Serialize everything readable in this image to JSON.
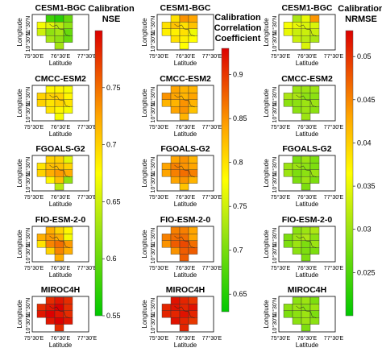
{
  "chart_data": {
    "type": "heatmap",
    "grid_columns": [
      "NSE",
      "Correlation",
      "NRMSE"
    ],
    "rows": [
      "CESM1-BGC",
      "CMCC-ESM2",
      "FGOALS-G2",
      "FIO-ESM-2-0",
      "MIROC4H"
    ],
    "xlabel": "Latitude",
    "ylabel": "Longitude",
    "xticks": [
      "75°30'E",
      "76°30'E",
      "77°30'E"
    ],
    "yticks": [
      "11°30'N",
      "10°30'N"
    ],
    "colorbars": [
      {
        "id": "NSE",
        "title_lines": [
          "Calibration",
          "NSE"
        ],
        "range": [
          0.55,
          0.8
        ],
        "ticks": [
          "0.75",
          "0.7",
          "0.65",
          "0.6",
          "0.55"
        ],
        "tick_values": [
          0.75,
          0.7,
          0.65,
          0.6,
          0.55
        ]
      },
      {
        "id": "Correlation",
        "title_lines": [
          "Calibration",
          "Correlation",
          "Coefficient"
        ],
        "range": [
          0.63,
          0.93
        ],
        "ticks": [
          "0.9",
          "0.85",
          "0.8",
          "0.75",
          "0.7",
          "0.65"
        ],
        "tick_values": [
          0.9,
          0.85,
          0.8,
          0.75,
          0.7,
          0.65
        ]
      },
      {
        "id": "NRMSE",
        "title_lines": [
          "Calibration",
          "NRMSE"
        ],
        "range": [
          0.02,
          0.053
        ],
        "ticks": [
          "0.05",
          "0.045",
          "0.04",
          "0.035",
          "0.03",
          "0.025"
        ],
        "tick_values": [
          0.05,
          0.045,
          0.04,
          0.035,
          0.03,
          0.025
        ]
      }
    ],
    "cells_note": "Grid cells in each map row-major: row0 [c1,c2,c3], row1 [c0,c1,c2,c3], row2 [c0,c1,c2,c3], row3 [c1,c2,c3], row4 [c2]",
    "panels": [
      {
        "row": "CESM1-BGC",
        "col": "NSE",
        "values": [
          0.58,
          0.57,
          0.6,
          0.67,
          0.66,
          0.64,
          0.62,
          0.65,
          0.62,
          0.63,
          0.6,
          0.63,
          0.62,
          0.6,
          0.63
        ]
      },
      {
        "row": "CESM1-BGC",
        "col": "Correlation",
        "values": [
          0.8,
          0.85,
          0.84,
          0.8,
          0.82,
          0.8,
          0.82,
          0.79,
          0.79,
          0.8,
          0.77,
          0.8,
          0.79,
          0.78,
          0.78
        ]
      },
      {
        "row": "CESM1-BGC",
        "col": "NRMSE",
        "values": [
          0.031,
          0.035,
          0.044,
          0.036,
          0.035,
          0.034,
          0.034,
          0.035,
          0.033,
          0.033,
          0.033,
          0.033,
          0.032,
          0.031,
          0.034
        ]
      },
      {
        "row": "CMCC-ESM2",
        "col": "NSE",
        "values": [
          0.68,
          0.68,
          0.67,
          0.7,
          0.7,
          0.7,
          0.68,
          0.7,
          0.69,
          0.7,
          0.69,
          0.69,
          0.68,
          0.67,
          0.67
        ]
      },
      {
        "row": "CMCC-ESM2",
        "col": "Correlation",
        "values": [
          0.84,
          0.83,
          0.83,
          0.85,
          0.84,
          0.83,
          0.84,
          0.83,
          0.83,
          0.85,
          0.83,
          0.84,
          0.85,
          0.82,
          0.83
        ]
      },
      {
        "row": "CMCC-ESM2",
        "col": "NRMSE",
        "values": [
          0.03,
          0.03,
          0.03,
          0.031,
          0.031,
          0.029,
          0.029,
          0.029,
          0.029,
          0.03,
          0.03,
          0.029,
          0.03,
          0.029,
          0.03
        ]
      },
      {
        "row": "FGOALS-G2",
        "col": "NSE",
        "values": [
          0.7,
          0.7,
          0.66,
          0.69,
          0.71,
          0.71,
          0.7,
          0.7,
          0.72,
          0.73,
          0.72,
          0.68,
          0.71,
          0.62,
          0.64
        ]
      },
      {
        "row": "FGOALS-G2",
        "col": "Correlation",
        "values": [
          0.84,
          0.85,
          0.83,
          0.84,
          0.86,
          0.85,
          0.84,
          0.84,
          0.86,
          0.87,
          0.86,
          0.84,
          0.85,
          0.83,
          0.82
        ]
      },
      {
        "row": "FGOALS-G2",
        "col": "NRMSE",
        "values": [
          0.028,
          0.03,
          0.028,
          0.03,
          0.03,
          0.029,
          0.028,
          0.03,
          0.028,
          0.029,
          0.03,
          0.028,
          0.03,
          0.028,
          0.028
        ]
      },
      {
        "row": "FIO-ESM-2-0",
        "col": "NSE",
        "values": [
          0.72,
          0.7,
          0.68,
          0.72,
          0.73,
          0.72,
          0.67,
          0.69,
          0.74,
          0.75,
          0.73,
          0.7,
          0.74,
          0.72,
          0.72
        ]
      },
      {
        "row": "FIO-ESM-2-0",
        "col": "Correlation",
        "values": [
          0.86,
          0.86,
          0.84,
          0.86,
          0.87,
          0.87,
          0.84,
          0.85,
          0.88,
          0.89,
          0.87,
          0.85,
          0.88,
          0.88,
          0.88
        ]
      },
      {
        "row": "FIO-ESM-2-0",
        "col": "NRMSE",
        "values": [
          0.029,
          0.03,
          0.031,
          0.028,
          0.03,
          0.031,
          0.029,
          0.028,
          0.03,
          0.028,
          0.03,
          0.029,
          0.028,
          0.028,
          0.028
        ]
      },
      {
        "row": "MIROC4H",
        "col": "NSE",
        "values": [
          0.78,
          0.79,
          0.78,
          0.78,
          0.79,
          0.8,
          0.78,
          0.79,
          0.8,
          0.79,
          0.78,
          0.79,
          0.8,
          0.79,
          0.78
        ]
      },
      {
        "row": "MIROC4H",
        "col": "Correlation",
        "values": [
          0.92,
          0.91,
          0.9,
          0.91,
          0.92,
          0.91,
          0.92,
          0.91,
          0.91,
          0.92,
          0.91,
          0.92,
          0.91,
          0.9,
          0.91
        ]
      },
      {
        "row": "MIROC4H",
        "col": "NRMSE",
        "values": [
          0.029,
          0.03,
          0.028,
          0.029,
          0.03,
          0.029,
          0.03,
          0.028,
          0.029,
          0.03,
          0.028,
          0.029,
          0.03,
          0.029,
          0.028
        ]
      }
    ]
  }
}
